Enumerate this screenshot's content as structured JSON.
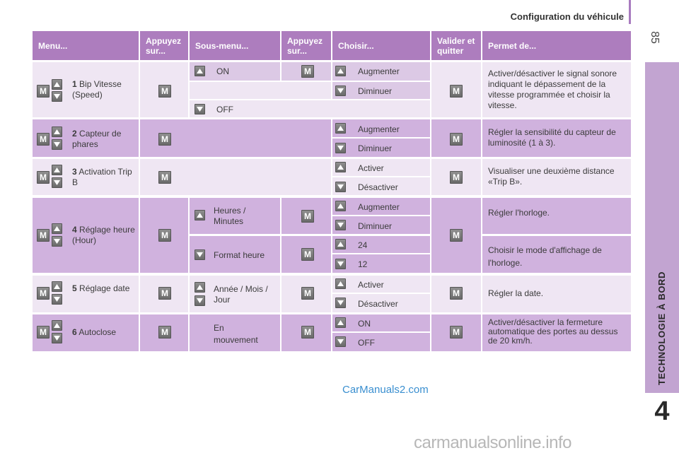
{
  "page": {
    "header": "Configuration du véhicule",
    "page_number": "85",
    "section_label": "TECHNOLOGIE À BORD",
    "chapter": "4",
    "watermark_top": "CarManuals2.com",
    "watermark_bottom": "carmanualsonline.info"
  },
  "table": {
    "headers": [
      "Menu...",
      "Appuyez sur...",
      "Sous-menu...",
      "Appuyez sur...",
      "Choisir...",
      "Valider et quitter",
      "Permet de..."
    ],
    "rows": [
      {
        "num": "1",
        "menu": "Bip Vitesse (Speed)",
        "key": "M",
        "submenus": [
          "ON",
          "",
          "OFF"
        ],
        "choices": [
          "Augmenter",
          "Diminuer"
        ],
        "description": "Activer/désactiver le signal sonore indiquant le dépassement de la vitesse programmée et choisir la vitesse."
      },
      {
        "num": "2",
        "menu": "Capteur de phares",
        "key": "M",
        "choices": [
          "Augmenter",
          "Diminuer"
        ],
        "description": "Régler la sensibilité du capteur de luminosité (1 à 3)."
      },
      {
        "num": "3",
        "menu": "Activation Trip B",
        "key": "M",
        "choices": [
          "Activer",
          "Désactiver"
        ],
        "description": "Visualiser une deuxième distance «Trip B»."
      },
      {
        "num": "4",
        "menu": "Réglage heure (Hour)",
        "key": "M",
        "submenus": [
          "Heures / Minutes",
          "Format heure"
        ],
        "choices": [
          "Augmenter",
          "Diminuer",
          "24",
          "12"
        ],
        "descriptions": [
          "Régler l'horloge.",
          "Choisir le mode d'affichage de l'horloge."
        ]
      },
      {
        "num": "5",
        "menu": "Réglage date",
        "key": "M",
        "submenus": [
          "Année / Mois / Jour"
        ],
        "choices": [
          "Activer",
          "Désactiver"
        ],
        "description": "Régler la date."
      },
      {
        "num": "6",
        "menu": "Autoclose",
        "key": "M",
        "submenus": [
          "En mouvement"
        ],
        "choices": [
          "ON",
          "OFF"
        ],
        "description": "Activer/désactiver la fermeture automatique des portes au dessus de 20 km/h."
      }
    ]
  },
  "icons": {
    "m_key": "m-key-icon",
    "up_key": "up-arrow-icon",
    "down_key": "down-arrow-icon"
  },
  "colors": {
    "header_bg": "#ad7dbe",
    "row_light": "#efe6f3",
    "row_mid": "#dcc9e5",
    "row_dark": "#d0b2de",
    "side_band": "#c2a4d1"
  }
}
